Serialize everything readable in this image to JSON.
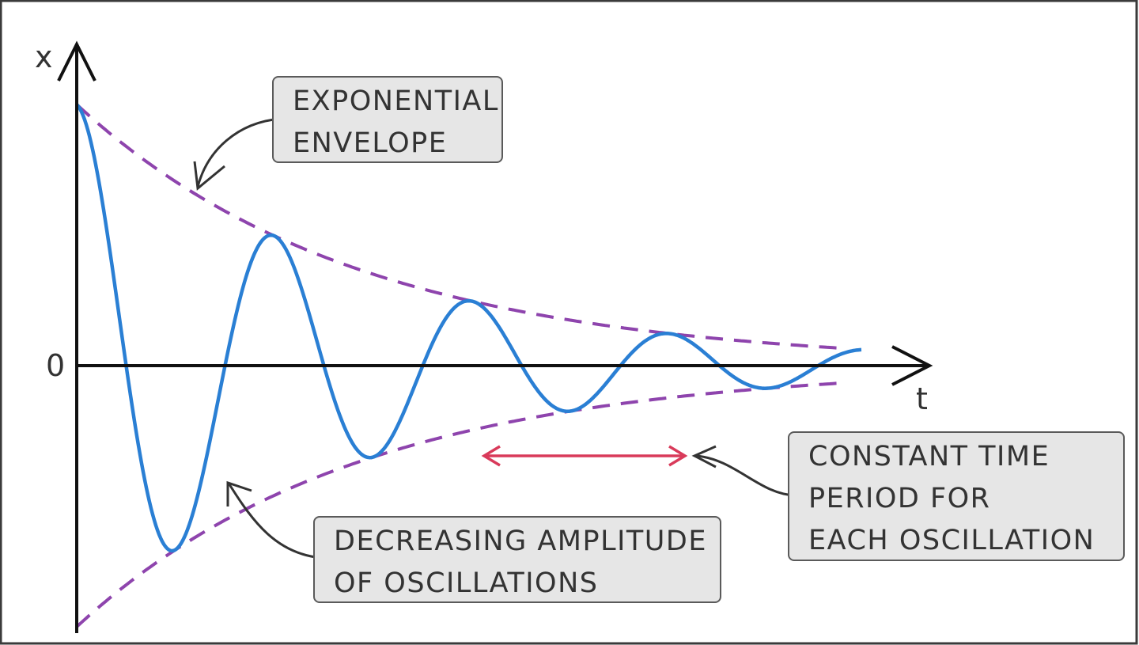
{
  "axes": {
    "y_label": "x",
    "x_label": "t",
    "origin_label": "0"
  },
  "annotations": {
    "envelope": [
      "EXPONENTIAL",
      "ENVELOPE"
    ],
    "amplitude": [
      "DECREASING  AMPLITUDE",
      "OF  OSCILLATIONS"
    ],
    "period": [
      "CONSTANT  TIME",
      "PERIOD  FOR",
      "EACH  OSCILLATION"
    ]
  },
  "colors": {
    "wave": "#2a7fd4",
    "envelope": "#8e44ad",
    "period_arrow": "#d93a5a",
    "axis": "#111111",
    "box_fill": "#e6e6e6"
  }
}
